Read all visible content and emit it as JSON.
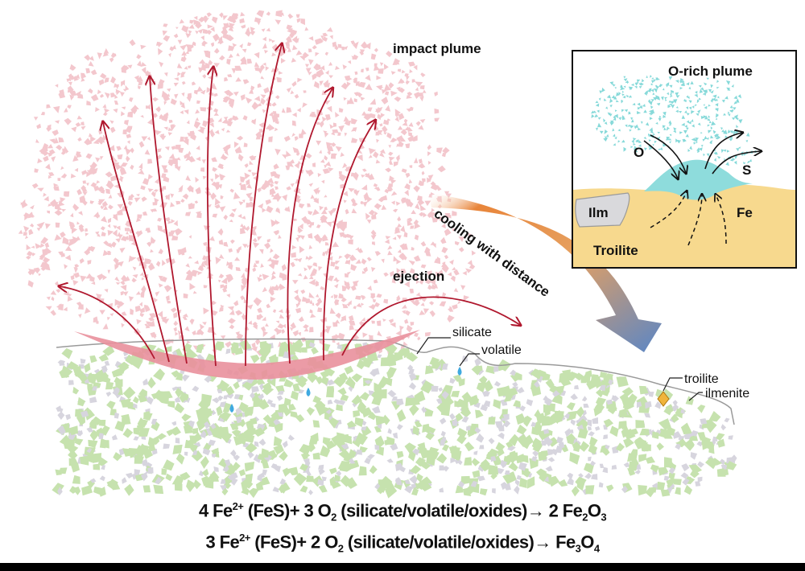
{
  "labels": {
    "impact_plume": "impact plume",
    "ejection": "ejection",
    "cooling": "cooling with distance",
    "silicate": "silicate",
    "volatile": "volatile",
    "troilite": "troilite",
    "ilmenite": "ilmenite"
  },
  "inset": {
    "title": "O-rich plume",
    "o": "O",
    "s": "S",
    "ilm": "Ilm",
    "fe": "Fe",
    "troilite": "Troilite"
  },
  "equations": [
    [
      {
        "t": "4 Fe"
      },
      {
        "t": "2+",
        "type": "sup"
      },
      {
        "t": " (FeS)+ 3 O"
      },
      {
        "t": "2",
        "type": "sub"
      },
      {
        "t": " (silicate/volatile/oxides)→ 2 Fe"
      },
      {
        "t": "2",
        "type": "sub"
      },
      {
        "t": "O"
      },
      {
        "t": "3",
        "type": "sub"
      }
    ],
    [
      {
        "t": "3 Fe"
      },
      {
        "t": "2+",
        "type": "sup"
      },
      {
        "t": " (FeS)+ 2 O"
      },
      {
        "t": "2",
        "type": "sub"
      },
      {
        "t": " (silicate/volatile/oxides)→ Fe"
      },
      {
        "t": "3",
        "type": "sub"
      },
      {
        "t": "O"
      },
      {
        "t": "4",
        "type": "sub"
      }
    ]
  ],
  "colors": {
    "plume": "#f3c7cd",
    "arrow": "#b0182e",
    "lens": "#e9909c",
    "silicate": "#c6e2ae",
    "ilmenite_grain": "#d7d5de",
    "volatile": "#3fa9e0",
    "troilite_grain": "#f0b43c",
    "inset_plume": "#86d9d9",
    "sand": "#f7d98e",
    "cooling_start": "#e8853a",
    "cooling_end": "#5a86c6"
  }
}
